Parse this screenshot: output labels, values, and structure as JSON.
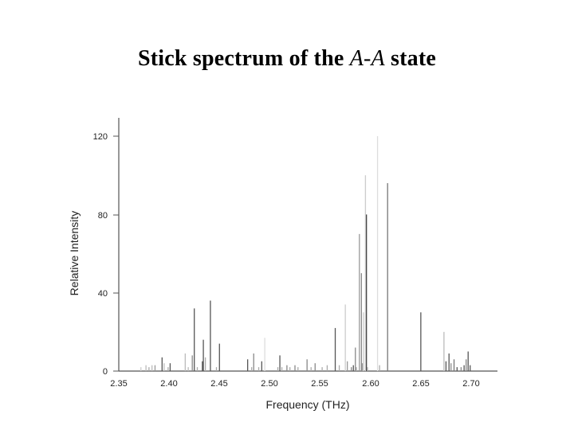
{
  "slide": {
    "title_pre": "Stick spectrum of the ",
    "title_state": "A-A",
    "title_post": " state"
  },
  "chart_data": {
    "type": "bar",
    "title": "Stick spectrum of the A-A state",
    "xlabel": "Frequency (THz)",
    "ylabel": "Relative Intensity",
    "xlim": [
      2.35,
      2.72
    ],
    "ylim": [
      0,
      130
    ],
    "xticks": [
      "2.35",
      "2.40",
      "2.45",
      "2.50",
      "2.55",
      "2.60",
      "2.65",
      "2.70"
    ],
    "yticks": [
      "0",
      "40",
      "80",
      "120"
    ],
    "grid": false,
    "series": [
      {
        "x": [
          2.372,
          2.377,
          2.38,
          2.383,
          2.386,
          2.393,
          2.395,
          2.399,
          2.401,
          2.416,
          2.419,
          2.423,
          2.425,
          2.428,
          2.433,
          2.434,
          2.436,
          2.441,
          2.447,
          2.45,
          2.478,
          2.482,
          2.484,
          2.489,
          2.492,
          2.495,
          2.508,
          2.51,
          2.512,
          2.517,
          2.52,
          2.525,
          2.528,
          2.537,
          2.541,
          2.545,
          2.552,
          2.557,
          2.565,
          2.569,
          2.575,
          2.577,
          2.581,
          2.583,
          2.585,
          2.586,
          2.589,
          2.591,
          2.592,
          2.593,
          2.595,
          2.596,
          2.597,
          2.607,
          2.609,
          2.617,
          2.65,
          2.673,
          2.675,
          2.678,
          2.68,
          2.683,
          2.686,
          2.69,
          2.693,
          2.695,
          2.697,
          2.699
        ],
        "values": [
          2,
          3,
          2,
          3,
          3,
          7,
          4,
          2,
          4,
          9,
          2,
          8,
          32,
          2,
          5,
          16,
          7,
          36,
          2,
          14,
          6,
          2,
          9,
          2,
          5,
          17,
          2,
          8,
          2,
          3,
          2,
          3,
          2,
          6,
          2,
          4,
          2,
          3,
          22,
          3,
          34,
          5,
          2,
          3,
          12,
          2,
          70,
          50,
          4,
          30,
          100,
          80,
          2,
          120,
          3,
          96,
          30,
          20,
          5,
          9,
          4,
          6,
          2,
          2,
          3,
          6,
          10,
          3
        ],
        "colors": [
          "#ccc",
          "#bbb",
          "#aaa",
          "#bbb",
          "#999",
          "#555",
          "#bbb",
          "#aaa",
          "#555",
          "#bbb",
          "#bbb",
          "#888",
          "#555",
          "#aaa",
          "#555",
          "#555",
          "#aaa",
          "#555",
          "#aaa",
          "#555",
          "#555",
          "#aaa",
          "#888",
          "#aaa",
          "#555",
          "#ddd",
          "#aaa",
          "#555",
          "#aaa",
          "#888",
          "#aaa",
          "#888",
          "#aaa",
          "#888",
          "#aaa",
          "#888",
          "#aaa",
          "#aaa",
          "#555",
          "#aaa",
          "#ccc",
          "#999",
          "#888",
          "#555",
          "#888",
          "#aaa",
          "#999",
          "#888",
          "#999",
          "#ccc",
          "#ccc",
          "#444",
          "#aaa",
          "#ddd",
          "#aaa",
          "#777",
          "#555",
          "#bbb",
          "#555",
          "#555",
          "#888",
          "#777",
          "#555",
          "#888",
          "#555",
          "#888",
          "#555",
          "#555"
        ]
      }
    ]
  }
}
